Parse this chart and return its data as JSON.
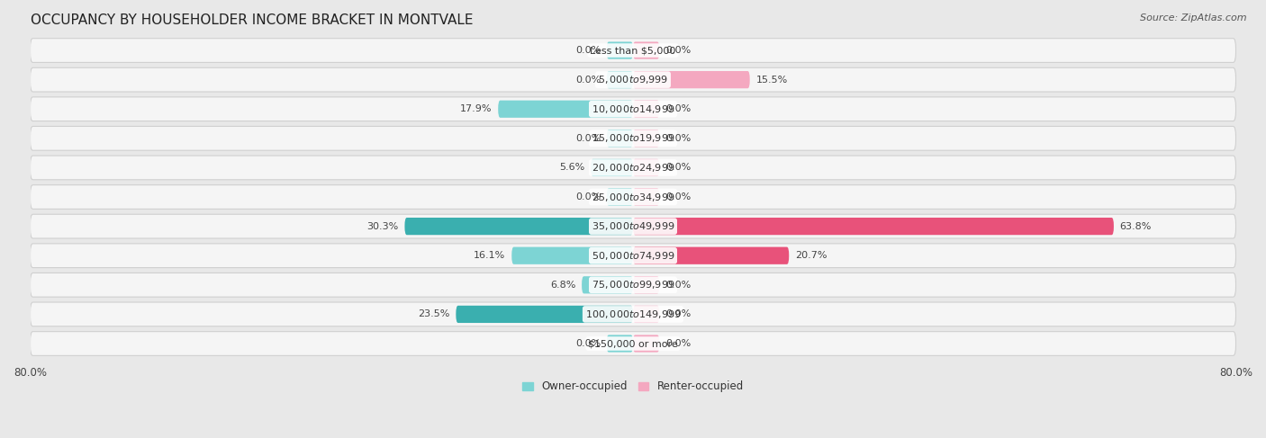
{
  "title": "OCCUPANCY BY HOUSEHOLDER INCOME BRACKET IN MONTVALE",
  "source": "Source: ZipAtlas.com",
  "categories": [
    "Less than $5,000",
    "$5,000 to $9,999",
    "$10,000 to $14,999",
    "$15,000 to $19,999",
    "$20,000 to $24,999",
    "$25,000 to $34,999",
    "$35,000 to $49,999",
    "$50,000 to $74,999",
    "$75,000 to $99,999",
    "$100,000 to $149,999",
    "$150,000 or more"
  ],
  "owner_values": [
    0.0,
    0.0,
    17.9,
    0.0,
    5.6,
    0.0,
    30.3,
    16.1,
    6.8,
    23.5,
    0.0
  ],
  "renter_values": [
    0.0,
    15.5,
    0.0,
    0.0,
    0.0,
    0.0,
    63.8,
    20.7,
    0.0,
    0.0,
    0.0
  ],
  "owner_color_strong": "#3aafaf",
  "owner_color_light": "#7dd4d4",
  "renter_color_strong": "#e8527a",
  "renter_color_light": "#f4a8c0",
  "background_color": "#e8e8e8",
  "row_bg_color": "#f5f5f5",
  "row_border_color": "#d0d0d0",
  "axis_limit": 80.0,
  "title_fontsize": 11,
  "source_fontsize": 8,
  "label_fontsize": 8,
  "category_fontsize": 8,
  "legend_fontsize": 8.5,
  "axis_label_fontsize": 8.5,
  "stub_size": 3.5,
  "strong_threshold": 20.0
}
